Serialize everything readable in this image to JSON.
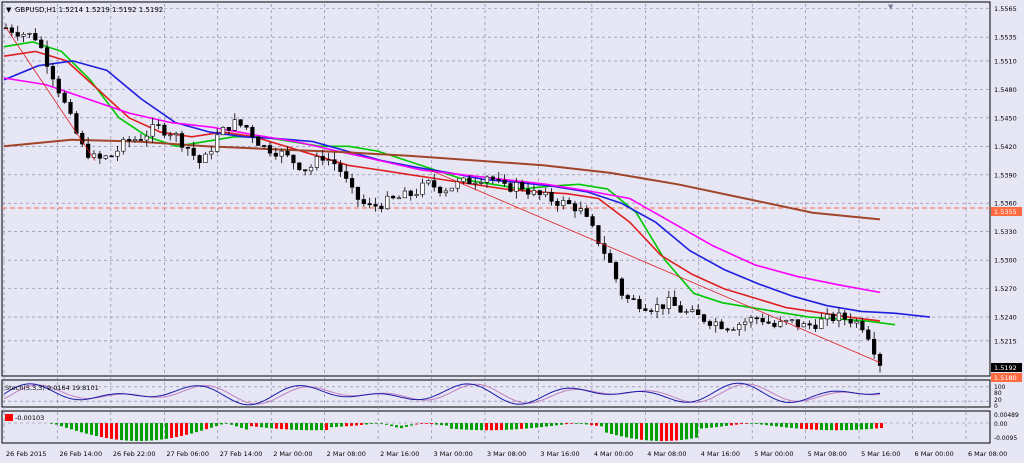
{
  "window": {
    "title": "GBPUSD,H1  1.5214 1.5219 1.5192 1.5192"
  },
  "colors": {
    "background": "#e6e6f5",
    "grid": "#7f7f9a",
    "bull_candle": "#ffffff",
    "bear_candle": "#000000",
    "ma_green": "#00c800",
    "ma_lime": "#33cc33",
    "ma_red": "#e02020",
    "ma_blue": "#1f1fe0",
    "ma_magenta": "#ff00ff",
    "ma_brown": "#a0442a",
    "support_line": "#ff6a40",
    "price_marker": "#ff6a40",
    "stoch_main": "#1a1aa8",
    "stoch_signal": "#c080c0",
    "hist_up": "#00a000",
    "hist_down": "#ff0000"
  },
  "price_axis": {
    "labels": [
      "1.5565",
      "1.5535",
      "1.5510",
      "1.5480",
      "1.5450",
      "1.5420",
      "1.5390",
      "1.5360",
      "1.5330",
      "1.5300",
      "1.5270",
      "1.5240",
      "1.5215"
    ],
    "current_price": "1.5192",
    "support_price": "1.5355",
    "bottom_marker": "1.5180"
  },
  "stoch_panel": {
    "label": "Stoch(5,3,3) 9.0164 19.8101",
    "axis_labels": [
      "100",
      "80",
      "20",
      "0"
    ]
  },
  "hist_panel": {
    "label": "-0.00103",
    "axis_labels": [
      "0.00489",
      "0.00",
      "-0.0095"
    ]
  },
  "time_axis": {
    "labels": [
      "26 Feb 2015",
      "26 Feb 14:00",
      "26 Feb 22:00",
      "27 Feb 06:00",
      "27 Feb 14:00",
      "2 Mar 00:00",
      "2 Mar 08:00",
      "2 Mar 16:00",
      "3 Mar 00:00",
      "3 Mar 08:00",
      "3 Mar 16:00",
      "4 Mar 00:00",
      "4 Mar 08:00",
      "4 Mar 16:00",
      "5 Mar 00:00",
      "5 Mar 08:00",
      "5 Mar 16:00",
      "6 Mar 00:00",
      "6 Mar 08:00"
    ]
  },
  "chart_data": {
    "type": "candlestick",
    "symbol": "GBPUSD",
    "timeframe": "H1",
    "ohlc_last": {
      "open": 1.5214,
      "high": 1.5219,
      "low": 1.5192,
      "close": 1.5192
    },
    "y_range": [
      1.518,
      1.557
    ],
    "close_path": [
      1.5545,
      1.554,
      1.5535,
      1.55,
      1.546,
      1.542,
      1.5405,
      1.541,
      1.5425,
      1.543,
      1.544,
      1.5435,
      1.542,
      1.54,
      1.543,
      1.5445,
      1.544,
      1.542,
      1.5415,
      1.5405,
      1.5395,
      1.541,
      1.54,
      1.537,
      1.5355,
      1.536,
      1.5365,
      1.537,
      1.538,
      1.5375,
      1.538,
      1.5385,
      1.539,
      1.5375,
      1.538,
      1.537,
      1.5365,
      1.536,
      1.5355,
      1.533,
      1.53,
      1.526,
      1.5255,
      1.525,
      1.5255,
      1.5245,
      1.524,
      1.5235,
      1.523,
      1.5235,
      1.524,
      1.523,
      1.5235,
      1.523,
      1.5235,
      1.524,
      1.5238,
      1.523,
      1.5192
    ],
    "moving_averages": [
      {
        "color": "ma_green",
        "values": [
          1.5525,
          1.553,
          1.552,
          1.549,
          1.545,
          1.543,
          1.542,
          1.5425,
          1.543,
          1.543,
          1.5425,
          1.542,
          1.542,
          1.5415,
          1.5405,
          1.5395,
          1.5385,
          1.538,
          1.5375,
          1.5378,
          1.538,
          1.5375,
          1.535,
          1.53,
          1.5265,
          1.5255,
          1.525,
          1.5245,
          1.524,
          1.5238,
          1.5236,
          1.5232
        ]
      },
      {
        "color": "ma_red",
        "values": [
          1.5515,
          1.552,
          1.551,
          1.548,
          1.545,
          1.5435,
          1.543,
          1.5435,
          1.543,
          1.542,
          1.541,
          1.54,
          1.5395,
          1.539,
          1.5385,
          1.538,
          1.5375,
          1.5372,
          1.537,
          1.5365,
          1.534,
          1.5305,
          1.5285,
          1.527,
          1.526,
          1.525,
          1.5245,
          1.524,
          1.5236
        ]
      },
      {
        "color": "ma_blue",
        "values": [
          1.549,
          1.5505,
          1.551,
          1.55,
          1.547,
          1.5445,
          1.5435,
          1.543,
          1.5428,
          1.5425,
          1.5415,
          1.5405,
          1.5398,
          1.5392,
          1.5385,
          1.5382,
          1.5378,
          1.5372,
          1.536,
          1.534,
          1.531,
          1.529,
          1.5275,
          1.5262,
          1.5252,
          1.5246,
          1.5244,
          1.524
        ]
      },
      {
        "color": "ma_magenta",
        "values": [
          1.5492,
          1.5485,
          1.547,
          1.5455,
          1.5445,
          1.544,
          1.5432,
          1.5425,
          1.5415,
          1.5405,
          1.5395,
          1.539,
          1.5385,
          1.538,
          1.5373,
          1.5365,
          1.534,
          1.5315,
          1.5295,
          1.5283,
          1.5274,
          1.5266
        ]
      },
      {
        "color": "ma_brown",
        "values": [
          1.542,
          1.5427,
          1.5425,
          1.542,
          1.5417,
          1.5414,
          1.541,
          1.5405,
          1.54,
          1.5392,
          1.538,
          1.5365,
          1.535,
          1.5343
        ]
      }
    ],
    "horizontal_line": 1.5355,
    "stochastic": {
      "main": 9.0164,
      "signal": 19.8101,
      "levels": [
        80,
        20
      ]
    },
    "histogram": {
      "last": -0.00103,
      "range": [
        -0.0095,
        0.00489
      ]
    }
  }
}
